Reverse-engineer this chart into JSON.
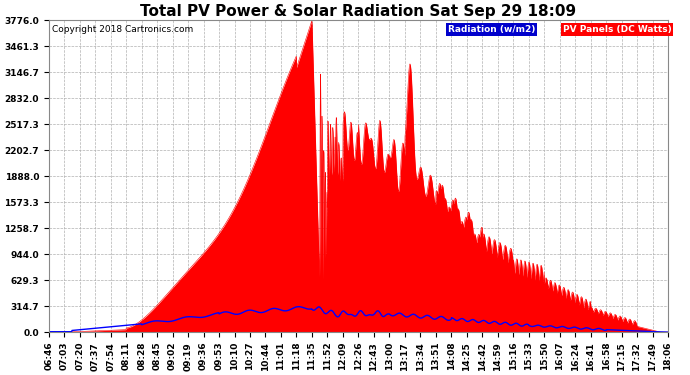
{
  "title": "Total PV Power & Solar Radiation Sat Sep 29 18:09",
  "copyright": "Copyright 2018 Cartronics.com",
  "legend_radiation": "Radiation (w/m2)",
  "legend_pv": "PV Panels (DC Watts)",
  "ymax": 3776.0,
  "yticks": [
    0.0,
    314.7,
    629.3,
    944.0,
    1258.7,
    1573.3,
    1888.0,
    2202.7,
    2517.3,
    2832.0,
    3146.7,
    3461.3,
    3776.0
  ],
  "background_color": "#ffffff",
  "plot_bg_color": "#ffffff",
  "grid_color": "#b0b0b0",
  "pv_fill_color": "#ff0000",
  "pv_line_color": "#ff0000",
  "radiation_line_color": "#0000ff",
  "title_fontsize": 11,
  "tick_fontsize": 6.5,
  "x_tick_labels": [
    "06:46",
    "07:03",
    "07:20",
    "07:37",
    "07:54",
    "08:11",
    "08:28",
    "08:45",
    "09:02",
    "09:19",
    "09:36",
    "09:53",
    "10:10",
    "10:27",
    "10:44",
    "11:01",
    "11:18",
    "11:35",
    "11:52",
    "12:09",
    "12:26",
    "12:43",
    "13:00",
    "13:17",
    "13:34",
    "13:51",
    "14:08",
    "14:25",
    "14:42",
    "14:59",
    "15:16",
    "15:33",
    "15:50",
    "16:07",
    "16:24",
    "16:41",
    "16:58",
    "17:15",
    "17:32",
    "17:49",
    "18:06"
  ]
}
